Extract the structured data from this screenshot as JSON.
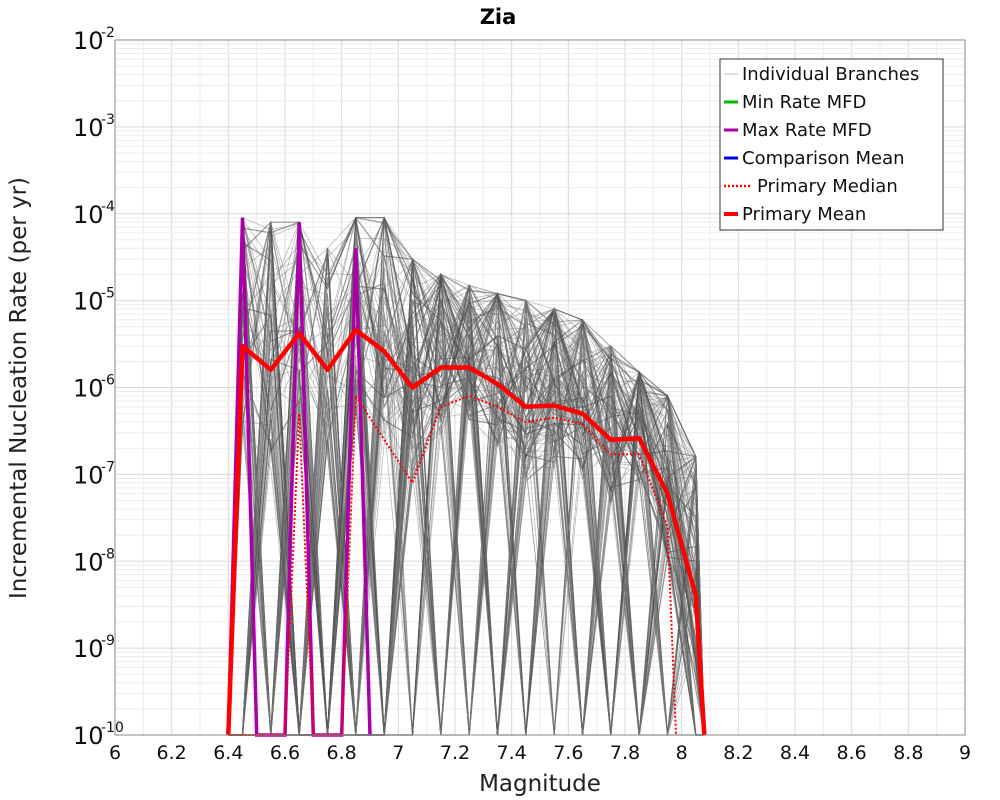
{
  "chart_data": {
    "type": "line",
    "title": "Zia",
    "xlabel": "Magnitude",
    "ylabel": "Incremental Nucleation Rate (per yr)",
    "xlim": [
      6,
      9
    ],
    "ylim": [
      1e-10,
      0.01
    ],
    "yscale": "log",
    "grid": true,
    "legend_position": "top-right",
    "x_ticks": [
      "6",
      "6.2",
      "6.4",
      "6.6",
      "6.8",
      "7",
      "7.2",
      "7.4",
      "7.6",
      "7.8",
      "8",
      "8.2",
      "8.4",
      "8.6",
      "8.8",
      "9"
    ],
    "y_ticks": [
      {
        "base": "10",
        "exp": "-2"
      },
      {
        "base": "10",
        "exp": "-3"
      },
      {
        "base": "10",
        "exp": "-4"
      },
      {
        "base": "10",
        "exp": "-5"
      },
      {
        "base": "10",
        "exp": "-6"
      },
      {
        "base": "10",
        "exp": "-7"
      },
      {
        "base": "10",
        "exp": "-8"
      },
      {
        "base": "10",
        "exp": "-9"
      },
      {
        "base": "10",
        "exp": "-10"
      }
    ],
    "series": [
      {
        "name": "Individual Branches",
        "color": "#555555",
        "style": "thin-solid",
        "note_x": [
          6.45,
          6.55,
          6.65,
          6.75,
          6.85,
          6.95,
          7.05,
          7.15,
          7.25,
          7.35,
          7.45,
          7.55,
          7.65,
          7.75,
          7.85,
          7.95,
          8.05
        ]
      },
      {
        "name": "Min Rate MFD",
        "color": "#00bb00",
        "style": "solid",
        "x": [],
        "y": []
      },
      {
        "name": "Max Rate MFD",
        "color": "#aa00aa",
        "style": "solid",
        "x": [
          6.4,
          6.45,
          6.5,
          6.6,
          6.65,
          6.7,
          6.8,
          6.85,
          6.9
        ],
        "y": [
          1e-10,
          9e-05,
          1e-10,
          1e-10,
          8e-05,
          1e-10,
          1e-10,
          4e-05,
          1e-10
        ]
      },
      {
        "name": "Comparison Mean",
        "color": "#0000dd",
        "style": "solid",
        "x": [],
        "y": []
      },
      {
        "name": "Primary Median",
        "color": "#ff0000",
        "style": "dotted",
        "x": [
          6.4,
          6.45,
          6.5,
          6.6,
          6.65,
          6.7,
          6.8,
          6.85,
          6.95,
          7.05,
          7.15,
          7.25,
          7.35,
          7.45,
          7.55,
          7.65,
          7.75,
          7.85,
          7.95,
          7.98
        ],
        "y": [
          1e-10,
          1e-10,
          1e-10,
          1e-10,
          5e-07,
          1e-10,
          1e-10,
          8e-07,
          2.5e-07,
          8e-08,
          6e-07,
          8e-07,
          6e-07,
          4e-07,
          4.5e-07,
          3.8e-07,
          1.7e-07,
          1.7e-07,
          2.5e-08,
          1e-10
        ]
      },
      {
        "name": "Primary Mean",
        "color": "#ff0000",
        "style": "thick-solid",
        "x": [
          6.4,
          6.45,
          6.55,
          6.65,
          6.75,
          6.85,
          6.95,
          7.05,
          7.15,
          7.25,
          7.35,
          7.45,
          7.55,
          7.65,
          7.75,
          7.85,
          7.95,
          8.05,
          8.08
        ],
        "y": [
          1e-10,
          3e-06,
          1.6e-06,
          4.2e-06,
          1.6e-06,
          4.6e-06,
          2.6e-06,
          1e-06,
          1.7e-06,
          1.7e-06,
          1.1e-06,
          6e-07,
          6.2e-07,
          5e-07,
          2.5e-07,
          2.6e-07,
          6e-08,
          4e-09,
          1e-10
        ]
      }
    ]
  }
}
